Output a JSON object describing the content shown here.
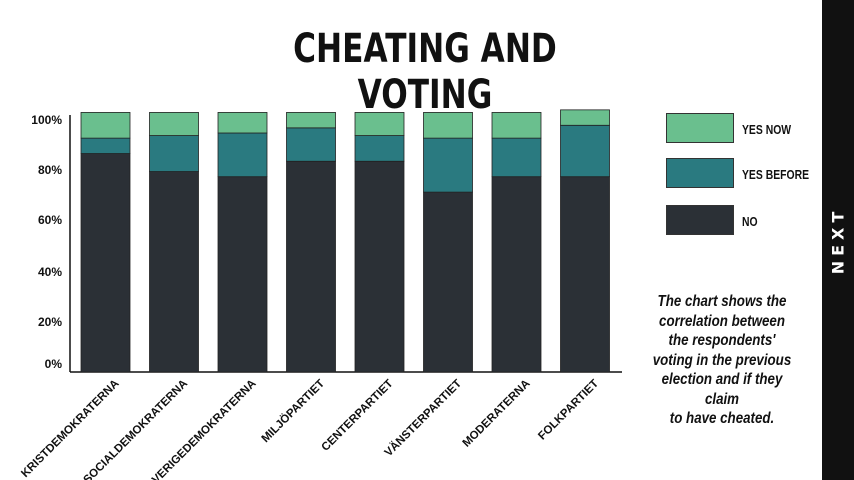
{
  "title": "CHEATING AND VOTING",
  "caption": [
    "The chart shows the",
    "correlation between",
    "the respondents'",
    "voting in the previous",
    "election and if they claim",
    "to have cheated."
  ],
  "next_label": "NEXT",
  "colors": {
    "no": "#2b3036",
    "yes_before": "#2a7a80",
    "yes_now": "#6abf8e"
  },
  "chart_data": {
    "type": "bar",
    "stacked": true,
    "categories": [
      "KRISTDEMOKRATERNA",
      "SOCIALDEMOKRATERNA",
      "SVERIGEDEMOKRATERNA",
      "MILJÖPARTIET",
      "CENTERPARTIET",
      "VÄNSTERPARTIET",
      "MODERATERNA",
      "FOLKPARTIET"
    ],
    "series": [
      {
        "name": "NO",
        "values": [
          85,
          78,
          76,
          82,
          82,
          70,
          76,
          76
        ]
      },
      {
        "name": "YES BEFORE",
        "values": [
          6,
          14,
          17,
          13,
          10,
          21,
          15,
          20
        ]
      },
      {
        "name": "YES NOW",
        "values": [
          10,
          9,
          8,
          6,
          9,
          10,
          10,
          6
        ]
      }
    ],
    "yticks": [
      "0%",
      "20%",
      "40%",
      "60%",
      "80%",
      "100%"
    ],
    "ylim": [
      0,
      100
    ],
    "legend": [
      "YES NOW",
      "YES BEFORE",
      "NO"
    ],
    "legend_position": "right"
  }
}
